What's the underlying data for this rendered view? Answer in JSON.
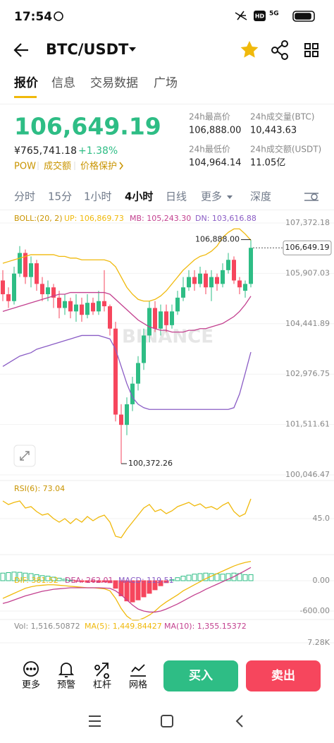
{
  "status_bar": {
    "time": "17:54",
    "hd": "HD",
    "network": "5G"
  },
  "header": {
    "pair": "BTC/USDT"
  },
  "tabs": [
    "报价",
    "信息",
    "交易数据",
    "广场"
  ],
  "price": {
    "last": "106,649.19",
    "cny": "¥765,741.18",
    "change": "+1.38%",
    "tags": [
      "POW",
      "成交额",
      "价格保护"
    ]
  },
  "stats": [
    {
      "label": "24h最高价",
      "value": "106,888.00"
    },
    {
      "label": "24h成交量(BTC)",
      "value": "10,443.63"
    },
    {
      "label": "24h最低价",
      "value": "104,964.14"
    },
    {
      "label": "24h成交额(USDT)",
      "value": "11.05亿"
    }
  ],
  "intervals": [
    "分时",
    "15分",
    "1小时",
    "4小时",
    "日线",
    "更多",
    "深度"
  ],
  "chart_data": {
    "type": "candlestick",
    "watermark": "BINANCE",
    "legend": [
      "BOLL:(20, 2)",
      "UP: 106,869.73",
      "MB: 105,243.30",
      "DN: 103,616.88"
    ],
    "up_color": "#2EBD85",
    "down_color": "#F6465D",
    "ylim": [
      100046.47,
      107372.18
    ],
    "yticks": [
      {
        "value": 107372.18,
        "label": "107,372.18"
      },
      {
        "value": 105907.03,
        "label": "105,907.03"
      },
      {
        "value": 104441.89,
        "label": "104,441.89"
      },
      {
        "value": 102976.75,
        "label": "102,976.75"
      },
      {
        "value": 101511.61,
        "label": "101,511.61"
      },
      {
        "value": 100046.47,
        "label": "100,046.47"
      }
    ],
    "open": [
      105700,
      105300,
      105100,
      105900,
      106500,
      105800,
      106200,
      105600,
      105300,
      105500,
      105200,
      104900,
      105100,
      104800,
      105000,
      104700,
      105050,
      104800,
      105100,
      104950,
      104300,
      101800,
      101500,
      102100,
      102700,
      103300,
      104100,
      104900,
      104300,
      104800,
      104400,
      104800,
      105200,
      105500,
      105800,
      105600,
      105900,
      105500,
      105800,
      105600,
      106000,
      106300,
      105700,
      105400,
      105600
    ],
    "close": [
      105300,
      105100,
      105900,
      106500,
      105800,
      106200,
      105600,
      105300,
      105500,
      105200,
      104900,
      105100,
      104800,
      105000,
      104700,
      105050,
      104800,
      105100,
      104950,
      104300,
      101800,
      101500,
      102100,
      102700,
      103300,
      104100,
      104900,
      104300,
      104800,
      104400,
      104800,
      105200,
      105500,
      105800,
      105600,
      105900,
      105500,
      105800,
      105600,
      106000,
      106300,
      105700,
      105500,
      105600,
      106649.19
    ],
    "high": [
      106000,
      105500,
      106100,
      106700,
      106600,
      106400,
      106300,
      105800,
      105700,
      105600,
      105400,
      105300,
      105200,
      105300,
      105200,
      105300,
      105200,
      105400,
      106000,
      105000,
      104500,
      102100,
      102300,
      102900,
      103500,
      104300,
      105100,
      105100,
      105000,
      105000,
      105000,
      105400,
      105800,
      106000,
      106000,
      106100,
      106000,
      106000,
      105900,
      106200,
      106500,
      106400,
      105800,
      105700,
      106888
    ],
    "low": [
      105100,
      104900,
      105000,
      105800,
      105600,
      105500,
      105400,
      105100,
      105100,
      104900,
      104600,
      104700,
      104600,
      104500,
      104500,
      104600,
      104700,
      104700,
      104800,
      104100,
      101600,
      100372.26,
      101200,
      101900,
      102500,
      103100,
      103900,
      104200,
      104100,
      104200,
      104300,
      104700,
      105100,
      105400,
      105400,
      105500,
      105300,
      105100,
      105400,
      105500,
      105900,
      105600,
      105300,
      105200,
      105500
    ],
    "boll": [
      {
        "color": "#F0B90B",
        "values": [
          106200,
          106250,
          106300,
          106350,
          106400,
          106450,
          106450,
          106450,
          106450,
          106450,
          106400,
          106400,
          106350,
          106350,
          106300,
          106300,
          106300,
          106300,
          106300,
          106250,
          106100,
          105800,
          105500,
          105300,
          105150,
          105100,
          105100,
          105150,
          105250,
          105400,
          105600,
          105800,
          106000,
          106150,
          106300,
          106400,
          106450,
          106550,
          106700,
          106950,
          107100,
          107200,
          107200,
          107050,
          106869.73
        ]
      },
      {
        "color": "#C3408F",
        "values": [
          104800,
          104850,
          104900,
          104950,
          105000,
          105050,
          105100,
          105150,
          105200,
          105250,
          105300,
          105300,
          105350,
          105350,
          105350,
          105350,
          105350,
          105350,
          105350,
          105300,
          105150,
          105000,
          104850,
          104700,
          104550,
          104450,
          104350,
          104300,
          104250,
          104250,
          104200,
          104200,
          104200,
          104250,
          104250,
          104300,
          104300,
          104350,
          104400,
          104450,
          104550,
          104650,
          104800,
          105000,
          105243.3
        ]
      },
      {
        "color": "#8A5CC5",
        "values": [
          103200,
          103300,
          103400,
          103500,
          103550,
          103600,
          103700,
          103750,
          103800,
          103850,
          103900,
          103950,
          104000,
          104050,
          104100,
          104100,
          104100,
          104100,
          104050,
          104000,
          103700,
          103200,
          102700,
          102300,
          102100,
          102000,
          101950,
          101950,
          101950,
          101950,
          101950,
          101950,
          101950,
          101950,
          101950,
          101950,
          101950,
          101950,
          101950,
          101950,
          101950,
          102000,
          102400,
          103000,
          103616.88
        ]
      }
    ],
    "annotations": {
      "high": "106,888.00",
      "low": "100,372.26",
      "last": "106,649.19"
    },
    "rsi": {
      "legend": "RSI(6): 73.04",
      "color": "#F0B90B",
      "ylim": [
        0,
        100
      ],
      "yticks": [
        {
          "value": 45,
          "label": "45.0"
        }
      ],
      "values": [
        70,
        65,
        68,
        70,
        60,
        62,
        55,
        50,
        52,
        45,
        40,
        45,
        38,
        45,
        40,
        48,
        42,
        47,
        50,
        40,
        20,
        18,
        30,
        40,
        50,
        60,
        65,
        55,
        58,
        52,
        56,
        62,
        65,
        68,
        63,
        66,
        60,
        62,
        58,
        64,
        68,
        55,
        48,
        52,
        73.04
      ]
    },
    "macd": {
      "legend": [
        "DIF: 381.52",
        "DEA: 262.01",
        "MACD: 119.51"
      ],
      "colors": [
        "#F0B90B",
        "#C3408F",
        "#8A5CC5"
      ],
      "ylim": [
        -800,
        460
      ],
      "yticks": [
        {
          "value": 0,
          "label": "0.00"
        },
        {
          "value": -600,
          "label": "-600.00"
        }
      ],
      "dif": [
        -350,
        -300,
        -250,
        -200,
        -150,
        -120,
        -100,
        -90,
        -80,
        -80,
        -90,
        -100,
        -110,
        -120,
        -130,
        -140,
        -140,
        -150,
        -160,
        -200,
        -350,
        -550,
        -700,
        -780,
        -780,
        -740,
        -680,
        -600,
        -500,
        -420,
        -350,
        -280,
        -200,
        -140,
        -80,
        -20,
        40,
        90,
        140,
        190,
        240,
        290,
        330,
        360,
        381.52
      ],
      "dea": [
        -450,
        -420,
        -380,
        -340,
        -300,
        -270,
        -240,
        -210,
        -190,
        -170,
        -160,
        -150,
        -140,
        -140,
        -140,
        -140,
        -140,
        -140,
        -145,
        -150,
        -200,
        -280,
        -380,
        -480,
        -560,
        -600,
        -620,
        -620,
        -600,
        -560,
        -510,
        -460,
        -400,
        -340,
        -280,
        -230,
        -170,
        -120,
        -70,
        -20,
        30,
        80,
        140,
        200,
        262.01
      ],
      "hist": [
        150,
        160,
        170,
        165,
        150,
        140,
        120,
        100,
        90,
        70,
        50,
        30,
        10,
        -10,
        -20,
        -30,
        -20,
        -30,
        -25,
        -40,
        -150,
        -300,
        -400,
        -420,
        -380,
        -320,
        -250,
        -180,
        -100,
        -40,
        20,
        60,
        90,
        110,
        130,
        140,
        150,
        140,
        135,
        130,
        140,
        150,
        140,
        120,
        119.51
      ]
    },
    "vol": {
      "legend": [
        "Vol: 1,516.50872",
        "MA(5): 1,449.84427",
        "MA(10): 1,355.15372"
      ],
      "ylim": [
        0,
        7280
      ],
      "yticks": [
        {
          "value": 7280,
          "label": "7.28K"
        }
      ]
    }
  },
  "actions": [
    "更多",
    "预警",
    "杠杆",
    "网格"
  ],
  "buy": "买入",
  "sell": "卖出"
}
